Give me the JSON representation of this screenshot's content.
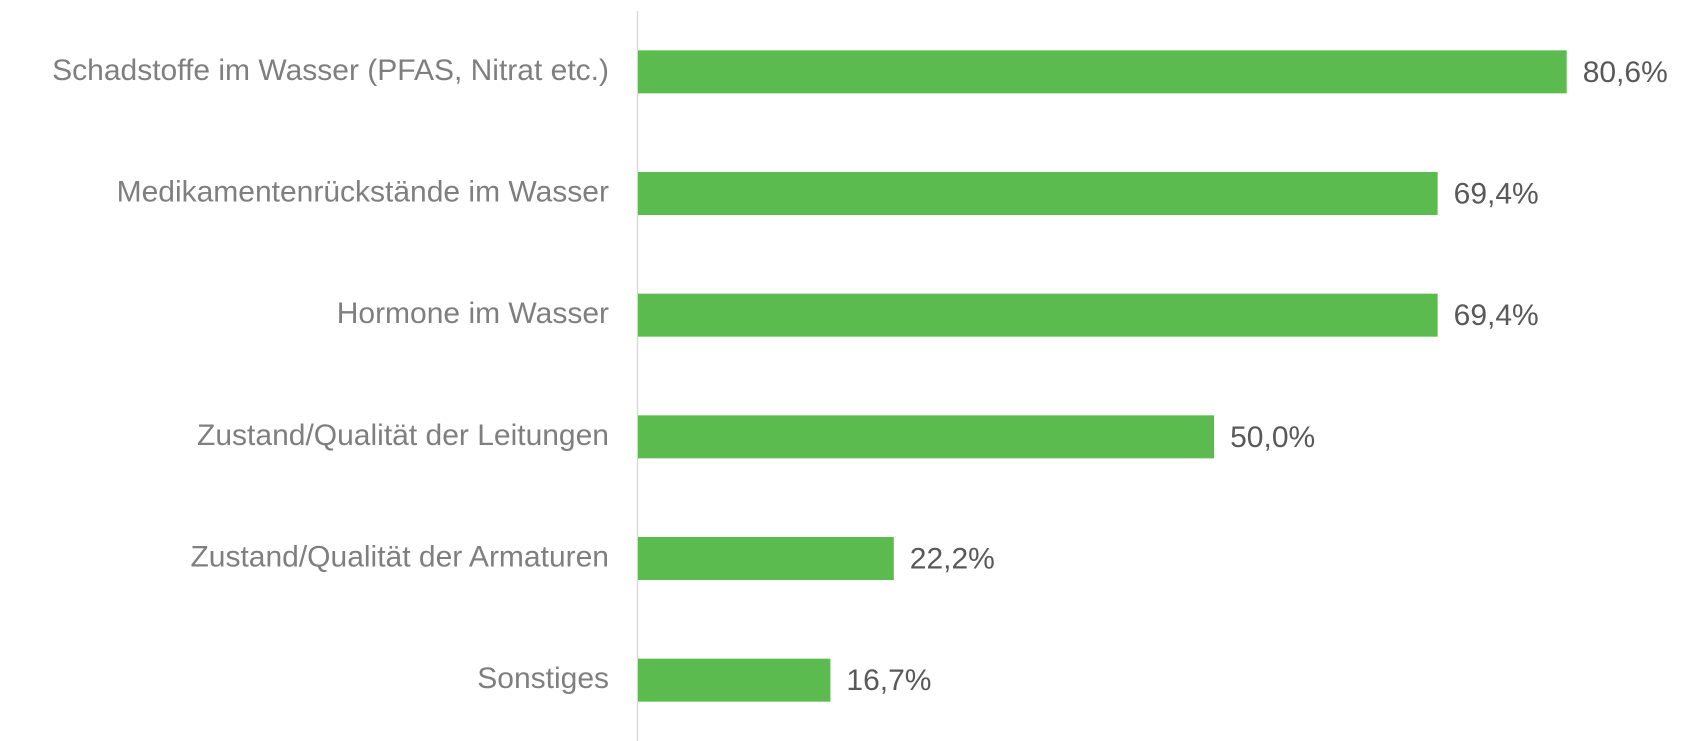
{
  "chart_data": {
    "type": "hbar",
    "categories": [
      "Schadstoffe im Wasser (PFAS, Nitrat etc.)",
      "Medikamentenrückstände im Wasser",
      "Hormone im Wasser",
      "Zustand/Qualität der Leitungen",
      "Zustand/Qualität der Armaturen",
      "Sonstiges"
    ],
    "values": [
      80.6,
      69.4,
      69.4,
      50.0,
      22.2,
      16.7
    ],
    "value_labels": [
      "80,6%",
      "69,4%",
      "69,4%",
      "50,0%",
      "22,2%",
      "16,7%"
    ],
    "color": "#5bbb4f",
    "xlim": [
      0,
      90
    ]
  }
}
